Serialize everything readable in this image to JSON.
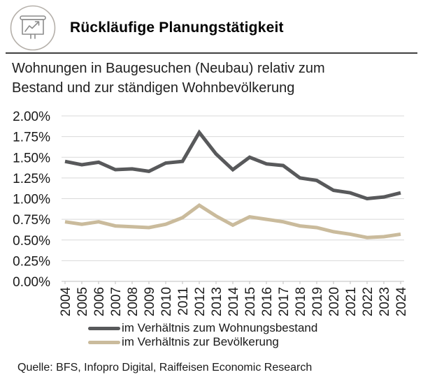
{
  "header": {
    "title": "Rückläufige Planungstätigkeit",
    "icon": "presentation-chart-icon"
  },
  "subtitle_lines": [
    "Wohnungen in Baugesuchen (Neubau) relativ zum",
    "Bestand und zur ständigen Wohnbevölkerung"
  ],
  "source": "Quelle: BFS, Infopro Digital, Raiffeisen Economic Research",
  "chart_data": {
    "type": "line",
    "x": [
      2004,
      2005,
      2006,
      2007,
      2008,
      2009,
      2010,
      2011,
      2012,
      2013,
      2014,
      2015,
      2016,
      2017,
      2018,
      2019,
      2020,
      2021,
      2022,
      2023,
      2024
    ],
    "series": [
      {
        "name": "im Verhältnis zum Wohnungsbestand",
        "color": "#58595b",
        "values": [
          1.45,
          1.41,
          1.44,
          1.35,
          1.36,
          1.33,
          1.43,
          1.45,
          1.8,
          1.54,
          1.35,
          1.5,
          1.42,
          1.4,
          1.25,
          1.22,
          1.1,
          1.07,
          1.0,
          1.02,
          1.07
        ]
      },
      {
        "name": "im Verhältnis zur Bevölkerung",
        "color": "#cabb9c",
        "values": [
          0.72,
          0.69,
          0.72,
          0.67,
          0.66,
          0.65,
          0.69,
          0.77,
          0.92,
          0.79,
          0.68,
          0.78,
          0.75,
          0.72,
          0.67,
          0.65,
          0.6,
          0.57,
          0.53,
          0.54,
          0.57
        ]
      }
    ],
    "ylim": [
      0,
      2.0
    ],
    "ytick_step": 0.25,
    "ytick_format": "0.00%",
    "grid": true,
    "grid_color": "#d9d9d9",
    "axis_color": "#bfbfbf",
    "legend_position": "bottom-left"
  }
}
